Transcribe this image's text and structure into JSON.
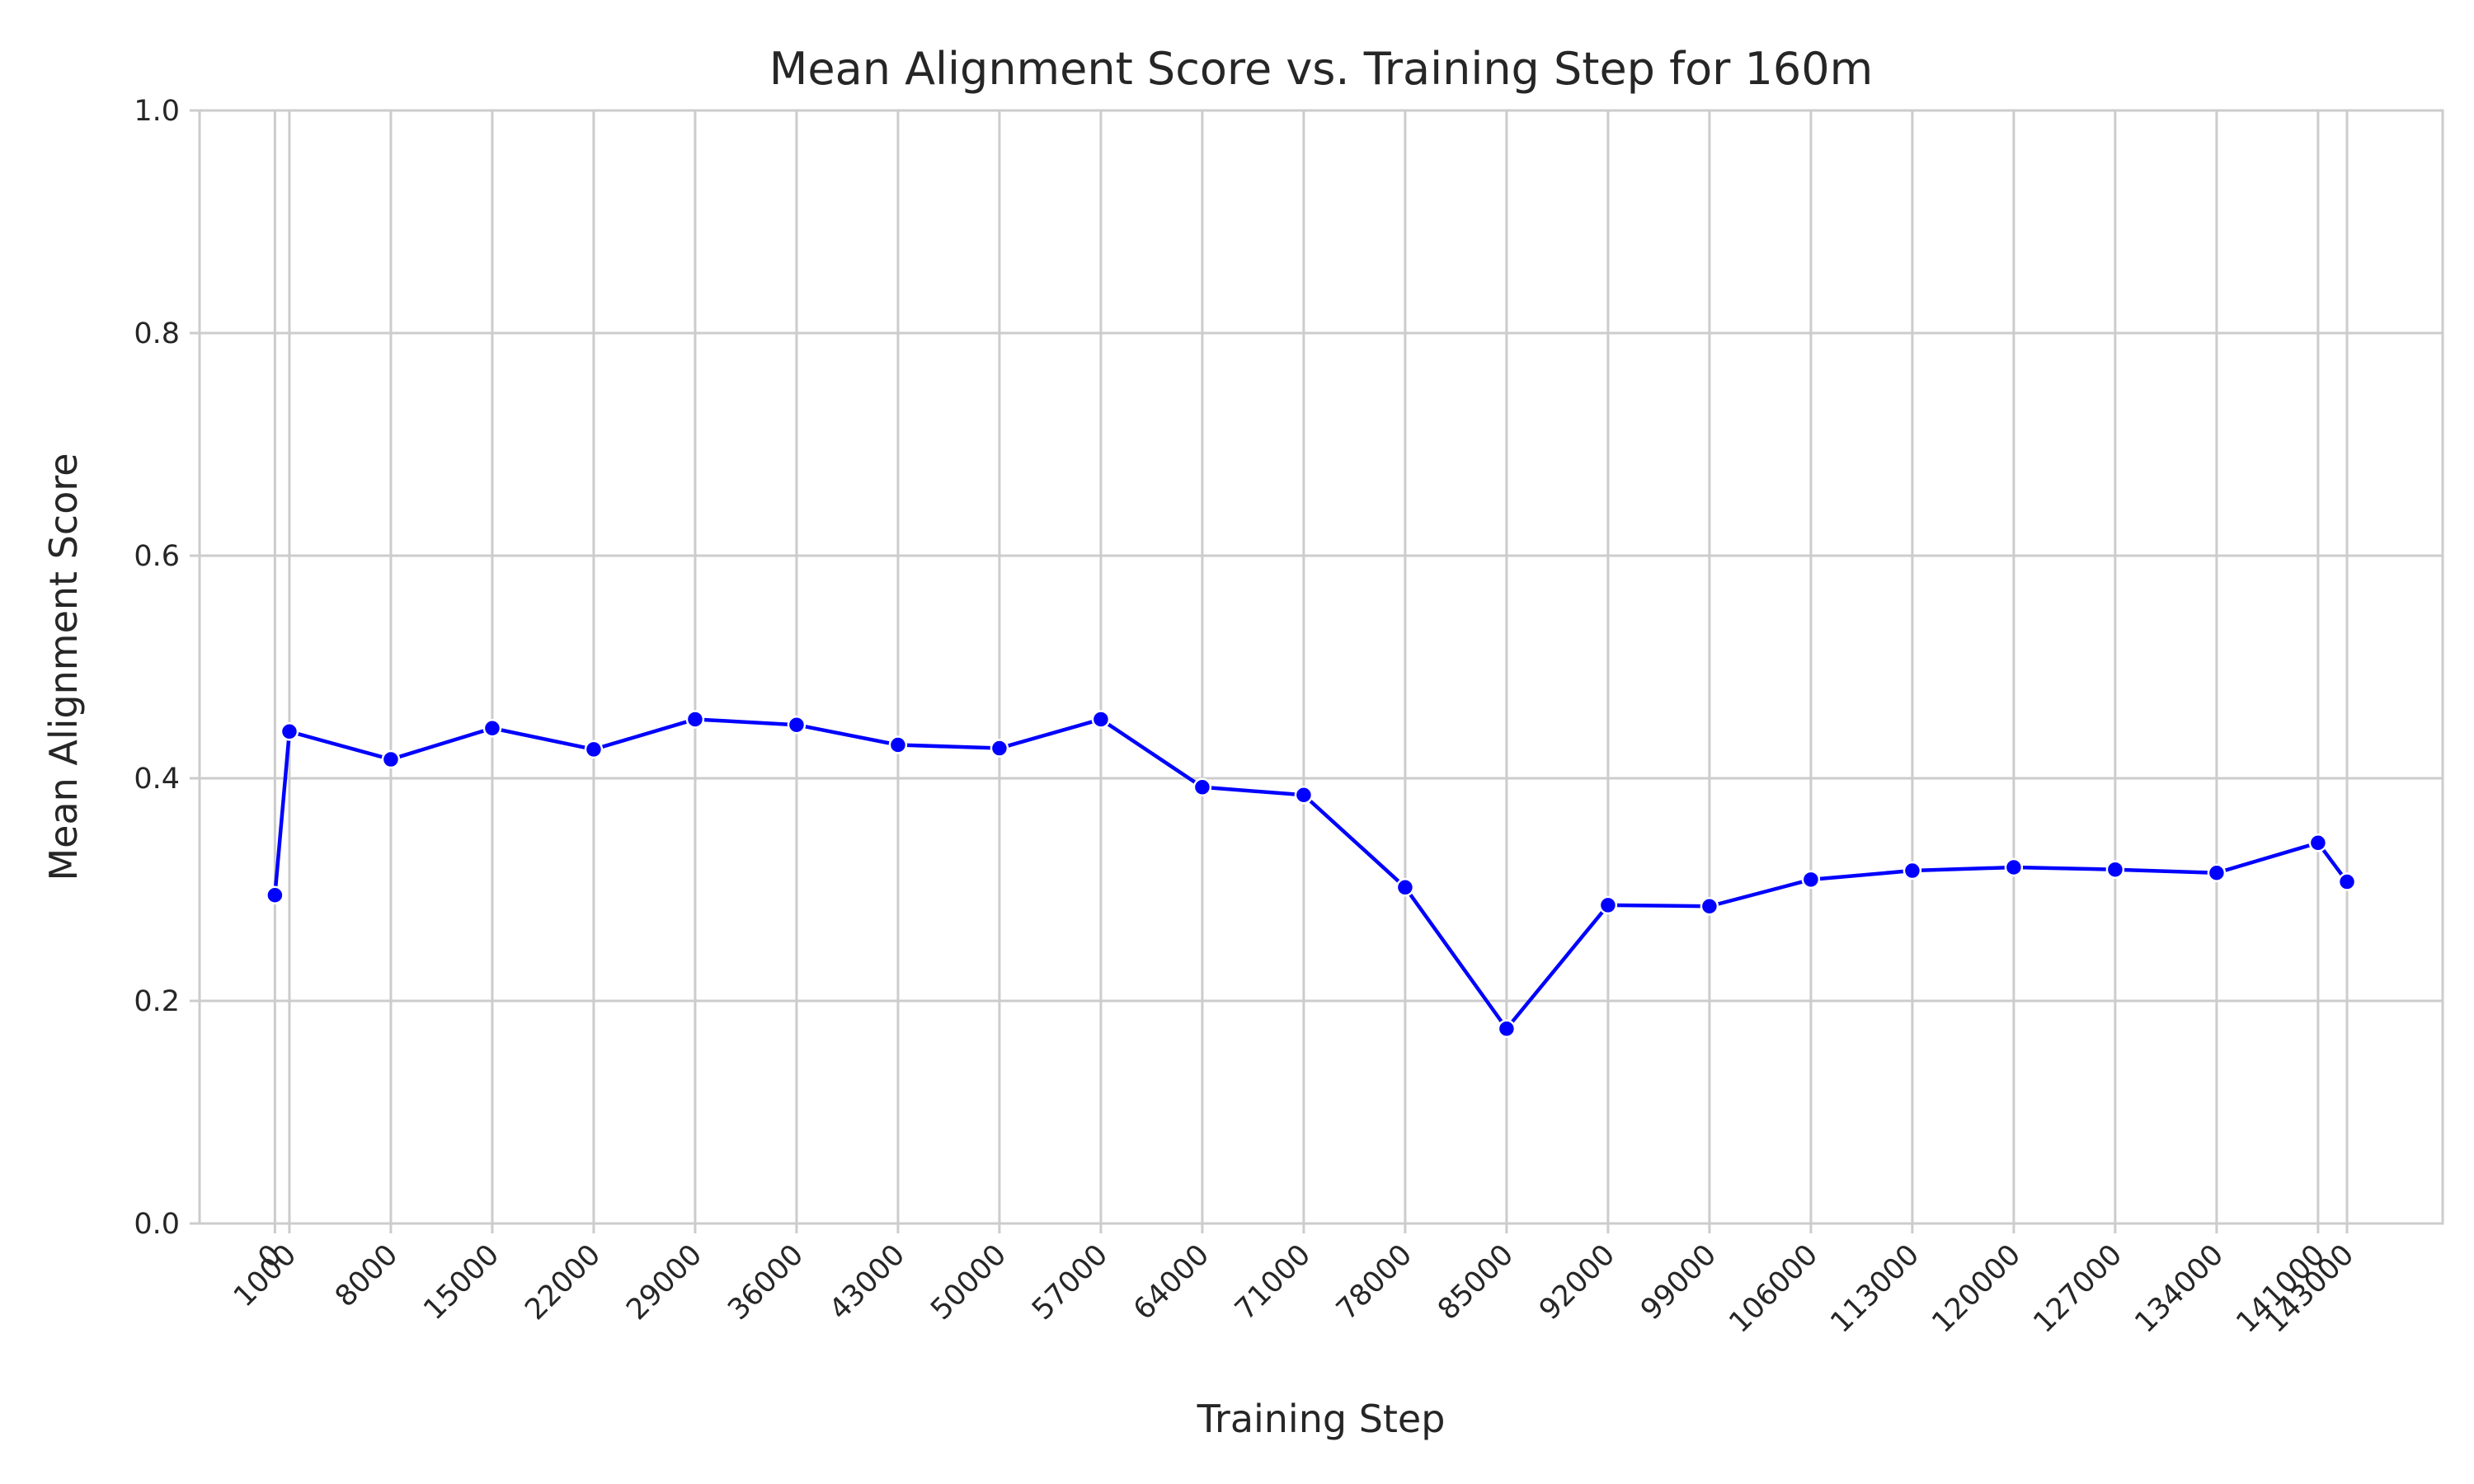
{
  "chart_data": {
    "type": "line",
    "title": "Mean Alignment Score vs. Training Step for 160m",
    "xlabel": "Training Step",
    "ylabel": "Mean Alignment Score",
    "ylim": [
      0,
      1.0
    ],
    "xlim": [
      -5200,
      149600
    ],
    "yticks": [
      0.0,
      0.2,
      0.4,
      0.6,
      0.8,
      1.0
    ],
    "ytick_labels": [
      "0.0",
      "0.2",
      "0.4",
      "0.6",
      "0.8",
      "1.0"
    ],
    "xticks": [
      0,
      1000,
      8000,
      15000,
      22000,
      29000,
      36000,
      43000,
      50000,
      57000,
      64000,
      71000,
      78000,
      85000,
      92000,
      99000,
      106000,
      113000,
      120000,
      127000,
      134000,
      141000,
      143000
    ],
    "xtick_labels": [
      "0",
      "1000",
      "8000",
      "15000",
      "22000",
      "29000",
      "36000",
      "43000",
      "50000",
      "57000",
      "64000",
      "71000",
      "78000",
      "85000",
      "92000",
      "99000",
      "106000",
      "113000",
      "120000",
      "127000",
      "134000",
      "141000",
      "143000"
    ],
    "grid": true,
    "legend": false,
    "series": [
      {
        "color": "#0000ff",
        "marker": "circle",
        "x": [
          0,
          1000,
          8000,
          15000,
          22000,
          29000,
          36000,
          43000,
          50000,
          57000,
          64000,
          71000,
          78000,
          85000,
          92000,
          99000,
          106000,
          113000,
          120000,
          127000,
          134000,
          141000,
          143000
        ],
        "y": [
          0.295,
          0.442,
          0.417,
          0.445,
          0.426,
          0.453,
          0.448,
          0.43,
          0.427,
          0.453,
          0.392,
          0.385,
          0.302,
          0.175,
          0.286,
          0.285,
          0.309,
          0.317,
          0.32,
          0.318,
          0.315,
          0.342,
          0.307
        ]
      }
    ],
    "colors": {
      "grid": "#cccccc",
      "spine": "#cccccc",
      "text": "#262626"
    }
  }
}
